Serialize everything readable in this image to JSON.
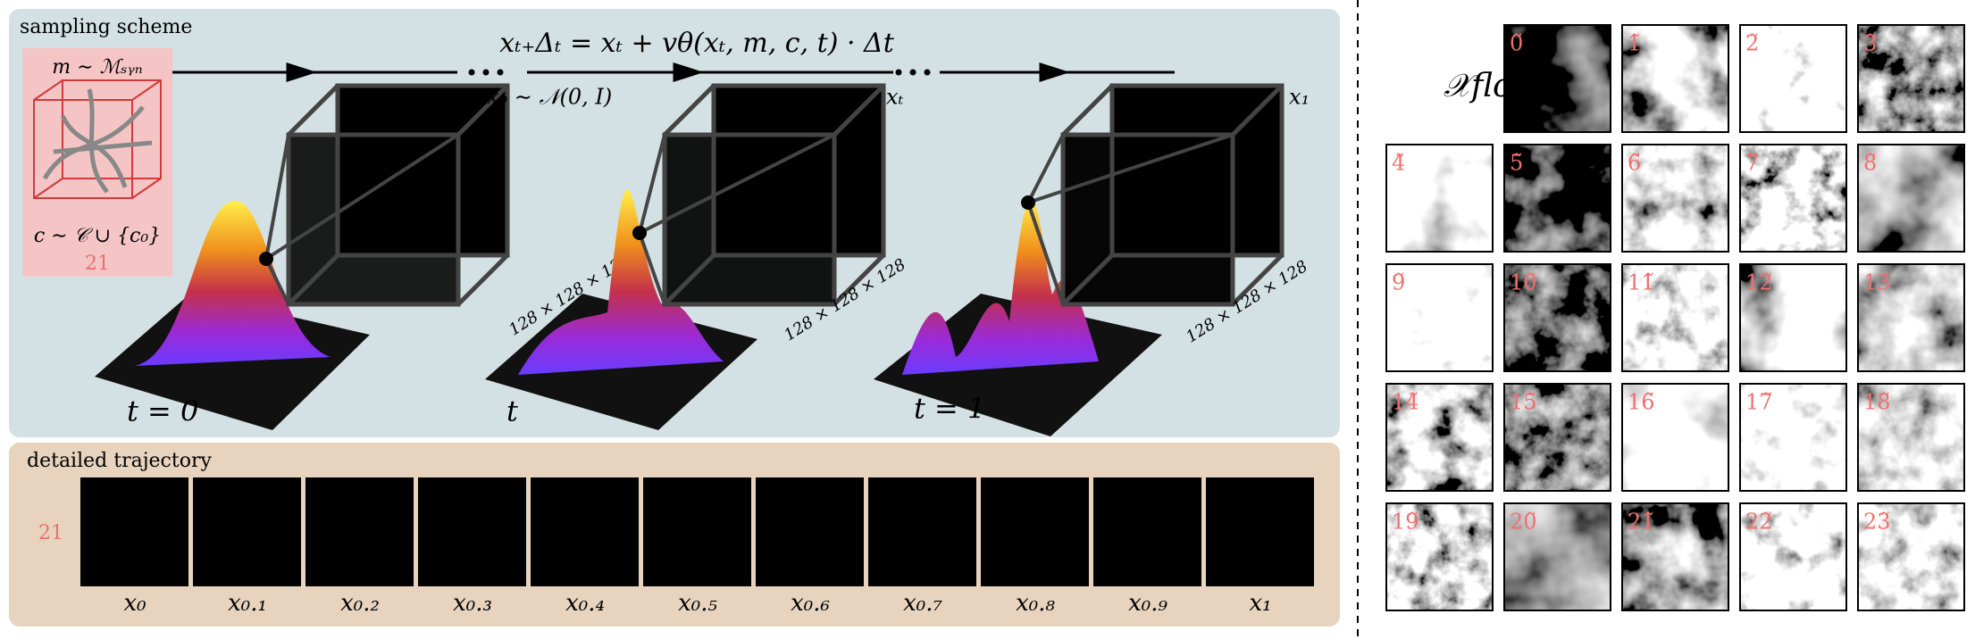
{
  "sampling_scheme": {
    "title": "sampling scheme",
    "condition": {
      "mask": "m ∼ ℳₛᵧₙ",
      "class": "c ∼ 𝒞 ∪ {c₀}",
      "class_id": "21"
    },
    "equation": "xₜ₊Δₜ = xₜ + vθ(xₜ, m, c, t) · Δt",
    "stages": [
      {
        "state": "x₀ ∼ 𝒩(0, I)",
        "time": "t = 0",
        "size": "128 × 128 × 128"
      },
      {
        "state": "xₜ",
        "time": "t",
        "size": "128 × 128 × 128"
      },
      {
        "state": "x₁",
        "time": "t = 1",
        "size": "128 × 128 × 128"
      }
    ]
  },
  "detailed_trajectory": {
    "title": "detailed trajectory",
    "class_id": "21",
    "steps": [
      "x₀",
      "x₀.₁",
      "x₀.₂",
      "x₀.₃",
      "x₀.₄",
      "x₀.₅",
      "x₀.₆",
      "x₀.₇",
      "x₀.₈",
      "x₀.₉",
      "x₁"
    ]
  },
  "flow_samples": {
    "title": "𝒳flow",
    "labels": [
      "0̃",
      "1̃",
      "2̃",
      "3̃",
      "4̃",
      "5̃",
      "6̃",
      "7̃",
      "8̃",
      "9̃",
      "10̃",
      "11̃",
      "12̃",
      "13̃",
      "14̃",
      "15̃",
      "16̃",
      "17̃",
      "18̃",
      "19̃",
      "20̃",
      "21̃",
      "22̃",
      "23̃"
    ]
  }
}
